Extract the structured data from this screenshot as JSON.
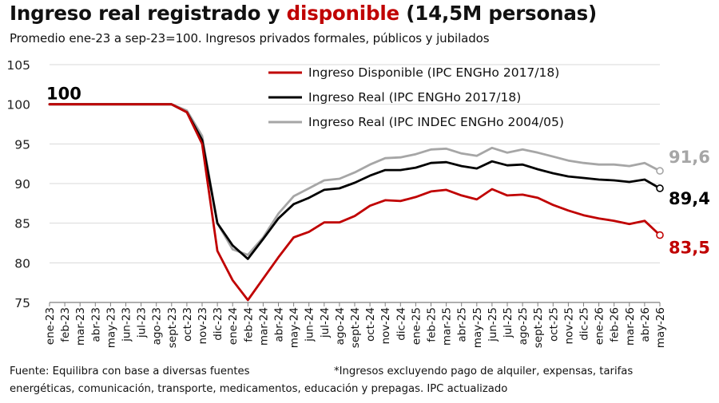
{
  "title": {
    "part1": "Ingreso real registrado y ",
    "highlight": "disponible",
    "part2": " (14,5M personas)"
  },
  "subtitle": "Promedio ene-23 a sep-23=100. Ingresos privados formales, públicos y jubilados",
  "footer": {
    "source": "Fuente: Equilibra con base a diversas fuentes",
    "note_line1": "*Ingresos excluyendo pago de alquiler, expensas, tarifas",
    "note_line2": "energéticas, comunicación, transporte, medicamentos, educación y prepagas. IPC actualizado"
  },
  "colors": {
    "red": "#c00000",
    "black": "#000000",
    "gray": "#a6a6a6",
    "grid": "#d9d9d9"
  },
  "chart_data": {
    "type": "line",
    "ylim": [
      75,
      105
    ],
    "yticks": [
      75,
      80,
      85,
      90,
      95,
      100,
      105
    ],
    "grid": "horizontal",
    "legend_position": "top-right",
    "x": [
      "ene-23",
      "feb-23",
      "mar-23",
      "abr-23",
      "may-23",
      "jun-23",
      "jul-23",
      "ago-23",
      "sept-23",
      "oct-23",
      "nov-23",
      "dic-23",
      "ene-24",
      "feb-24",
      "mar-24",
      "abr-24",
      "may-24",
      "jun-24",
      "jul-24",
      "ago-24",
      "sept-24",
      "oct-24",
      "nov-24",
      "dic-24",
      "ene-25",
      "feb-25",
      "mar-25",
      "abr-25",
      "may-25",
      "jun-25",
      "jul-25",
      "ago-25",
      "sept-25",
      "oct-25",
      "nov-25",
      "dic-25",
      "ene-26",
      "feb-26",
      "mar-26",
      "abr-26",
      "may-26"
    ],
    "series": [
      {
        "name": "Ingreso Real (IPC INDEC ENGHo 2004/05)",
        "color": "#a6a6a6",
        "values": [
          100,
          100,
          100,
          100,
          100,
          100,
          100,
          100,
          100,
          99.2,
          96,
          85,
          81.7,
          81,
          83.2,
          86.2,
          88.4,
          89.4,
          90.4,
          90.6,
          91.4,
          92.4,
          93.2,
          93.3,
          93.7,
          94.3,
          94.4,
          93.8,
          93.5,
          94.5,
          93.9,
          94.3,
          93.9,
          93.4,
          92.9,
          92.6,
          92.4,
          92.4,
          92.2,
          92.6,
          91.6
        ]
      },
      {
        "name": "Ingreso Real (IPC ENGHo 2017/18)",
        "color": "#000000",
        "values": [
          100,
          100,
          100,
          100,
          100,
          100,
          100,
          100,
          100,
          99,
          95.5,
          85,
          82.2,
          80.5,
          83,
          85.6,
          87.4,
          88.2,
          89.2,
          89.4,
          90.1,
          91,
          91.7,
          91.7,
          92,
          92.6,
          92.7,
          92.2,
          91.9,
          92.8,
          92.3,
          92.4,
          91.8,
          91.3,
          90.9,
          90.7,
          90.5,
          90.4,
          90.2,
          90.5,
          89.4
        ]
      },
      {
        "name": "Ingreso Disponible (IPC ENGHo 2017/18)",
        "color": "#c00000",
        "values": [
          100,
          100,
          100,
          100,
          100,
          100,
          100,
          100,
          100,
          99,
          95,
          81.5,
          77.8,
          75.3,
          78,
          80.7,
          83.2,
          83.9,
          85.1,
          85.1,
          85.9,
          87.2,
          87.9,
          87.8,
          88.3,
          89,
          89.2,
          88.5,
          88,
          89.3,
          88.5,
          88.6,
          88.2,
          87.3,
          86.6,
          86,
          85.6,
          85.3,
          84.9,
          85.3,
          83.5
        ]
      }
    ],
    "annotations": [
      {
        "text": "100",
        "series": "Ingreso Disponible (IPC ENGHo 2017/18)",
        "at": "ene-23",
        "color": "#000000"
      },
      {
        "text": "91,6",
        "series": "Ingreso Real (IPC INDEC ENGHo 2004/05)",
        "at": "may-26",
        "color": "#a6a6a6"
      },
      {
        "text": "89,4",
        "series": "Ingreso Real (IPC ENGHo 2017/18)",
        "at": "may-26",
        "color": "#000000"
      },
      {
        "text": "83,5",
        "series": "Ingreso Disponible (IPC ENGHo 2017/18)",
        "at": "may-26",
        "color": "#c00000"
      }
    ],
    "legend_order": [
      "Ingreso Disponible (IPC ENGHo 2017/18)",
      "Ingreso Real (IPC ENGHo 2017/18)",
      "Ingreso Real (IPC INDEC ENGHo 2004/05)"
    ]
  }
}
